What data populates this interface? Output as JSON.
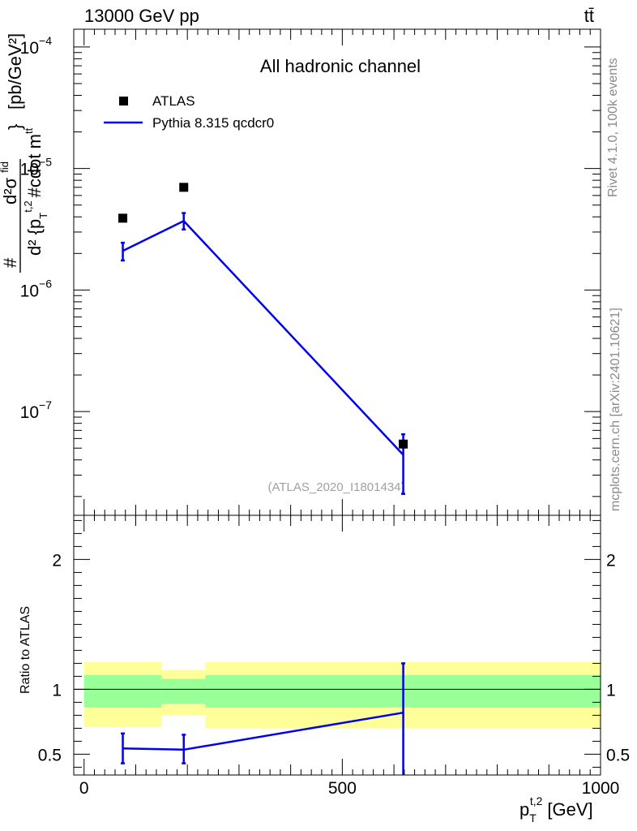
{
  "header": {
    "energy_label": "13000 GeV pp",
    "process_label": "tt̄"
  },
  "side_labels": {
    "rivet": "Rivet 4.1.0,  100k events",
    "source": "mcplots.cern.ch [arXiv:2401.10621]"
  },
  "colors": {
    "mc_line": "#0000ee",
    "data_marker": "#000000",
    "band_inner": "#99ff99",
    "band_outer": "#ffff99"
  },
  "chart_data": [
    {
      "type": "scatter",
      "title": "All hadronic channel",
      "watermark": "(ATLAS_2020_I1801434)",
      "xlabel": "p_T^{t,2} [GeV]",
      "ylabel": "# d²σ^{fid} / d² {p_T^{t,2} #cdot m^{tt}} [pb/GeV²]",
      "ylabel_parts": {
        "numerator_prefix": "#",
        "numerator": "d²σ",
        "numerator_sup": "fid",
        "denominator": "d² {p",
        "denominator_sub": "T",
        "denominator_sup": "t,2",
        "denominator_rest": "#cdot m",
        "denominator_rest_sup": "tt",
        "bracket": "}",
        "units": "[pb/GeV²]"
      },
      "yscale": "log",
      "xlim": [
        -20,
        1000
      ],
      "ylim": [
        1.4e-08,
        0.00014
      ],
      "y_ticks": [
        {
          "value": 1e-07,
          "base": "10",
          "exp": "−7"
        },
        {
          "value": 1e-06,
          "base": "10",
          "exp": "−6"
        },
        {
          "value": 1e-05,
          "base": "10",
          "exp": "−5"
        },
        {
          "value": 0.0001,
          "base": "10",
          "exp": "−4"
        }
      ],
      "legend": {
        "placement": "top-left",
        "entries": [
          {
            "label": "ATLAS",
            "style": "marker"
          },
          {
            "label": "Pythia 8.315 qcdcr0",
            "style": "line"
          }
        ]
      },
      "series": [
        {
          "name": "ATLAS",
          "x": [
            75,
            193,
            618
          ],
          "y": [
            3.9e-06,
            7e-06,
            5.4e-08
          ]
        },
        {
          "name": "Pythia 8.315 qcdcr0",
          "x": [
            75,
            193,
            618
          ],
          "y": [
            2.1e-06,
            3.7e-06,
            4.4e-08
          ],
          "y_low": [
            1.75e-06,
            3.15e-06,
            2.1e-08
          ],
          "y_high": [
            2.45e-06,
            4.3e-06,
            6.5e-08
          ]
        }
      ]
    },
    {
      "type": "line",
      "ylabel": "Ratio to ATLAS",
      "xlabel": "p_T^{t,2} [GeV]",
      "xlim": [
        -20,
        1000
      ],
      "ylim": [
        0.34,
        2.34
      ],
      "x_ticks": [
        0,
        500,
        1000
      ],
      "y_ticks": [
        0.5,
        1,
        2
      ],
      "reference": 1,
      "bands": {
        "edges": [
          0,
          150,
          235,
          1000
        ],
        "inner_low": [
          0.86,
          0.89,
          0.86
        ],
        "inner_high": [
          1.11,
          1.08,
          1.11
        ],
        "outer_low": [
          0.71,
          0.8,
          0.7
        ],
        "outer_high": [
          1.21,
          1.15,
          1.21
        ]
      },
      "series": [
        {
          "name": "Pythia 8.315 qcdcr0 / ATLAS",
          "x": [
            75,
            193,
            618
          ],
          "y": [
            0.545,
            0.535,
            0.82
          ],
          "y_low": [
            0.43,
            0.43,
            0.32
          ],
          "y_high": [
            0.66,
            0.65,
            1.2
          ]
        }
      ]
    }
  ]
}
